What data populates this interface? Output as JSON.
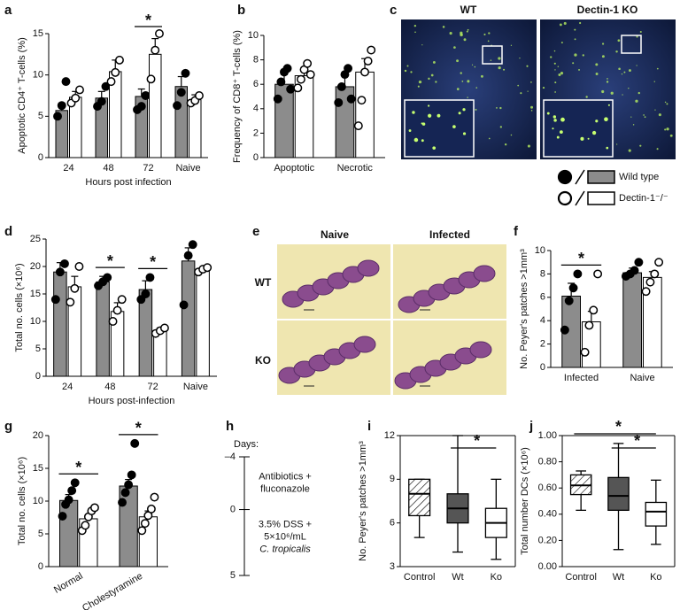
{
  "chart_data": [
    {
      "type": "bar",
      "panel": "a",
      "ylabel": "Apoptotic CD4⁺ T-cells (%)",
      "xlabel": "Hours post infection",
      "categories": [
        "24",
        "48",
        "72",
        "Naive"
      ],
      "ylim": [
        0,
        15
      ],
      "yticks": [
        0,
        5,
        10,
        15
      ],
      "series": [
        {
          "name": "Wild type",
          "color": "#8c8c8c",
          "point_fill": "#000000",
          "values": [
            5.7,
            7.2,
            7.4,
            8.6
          ],
          "errors": [
            0.9,
            0.8,
            0.9,
            1.2
          ],
          "points": [
            [
              5.0,
              6.3,
              9.2
            ],
            [
              6.2,
              6.8,
              8.6
            ],
            [
              5.8,
              6.2,
              7.5
            ],
            [
              6.3,
              7.9,
              10.2
            ]
          ]
        },
        {
          "name": "Dectin-1⁻/⁻",
          "color": "#ffffff",
          "point_fill": "#ffffff",
          "values": [
            7.3,
            10.4,
            12.5,
            7.0
          ],
          "errors": [
            0.7,
            1.4,
            1.9,
            0.6
          ],
          "points": [
            [
              6.6,
              7.2,
              8.2
            ],
            [
              9.2,
              10.3,
              11.8
            ],
            [
              9.5,
              13.0,
              15.0
            ],
            [
              6.6,
              6.9,
              7.5
            ]
          ]
        }
      ],
      "significance": [
        {
          "label": "*",
          "category": "72"
        }
      ]
    },
    {
      "type": "bar",
      "panel": "b",
      "ylabel": "Frequency of CD8⁺ T-cells (%)",
      "categories": [
        "Apoptotic",
        "Necrotic"
      ],
      "ylim": [
        0,
        10
      ],
      "yticks": [
        0,
        2,
        4,
        6,
        8,
        10
      ],
      "series": [
        {
          "color": "#8c8c8c",
          "point_fill": "#000000",
          "values": [
            6.0,
            5.8
          ],
          "errors": [
            0.8,
            0.9
          ],
          "points": [
            [
              4.8,
              6.2,
              7.0,
              7.3,
              5.6
            ],
            [
              4.5,
              5.8,
              6.8,
              7.3,
              4.8
            ]
          ]
        },
        {
          "color": "#ffffff",
          "point_fill": "#ffffff",
          "values": [
            6.7,
            7.0
          ],
          "errors": [
            0.6,
            1.1
          ],
          "points": [
            [
              5.7,
              6.4,
              7.2,
              7.7,
              6.8
            ],
            [
              2.6,
              4.7,
              7.0,
              7.9,
              8.8
            ]
          ]
        }
      ],
      "significance": []
    },
    {
      "type": "bar",
      "panel": "d",
      "ylabel": "Total no. cells (×10⁶)",
      "xlabel": "Hours post-infection",
      "categories": [
        "24",
        "48",
        "72",
        "Naive"
      ],
      "ylim": [
        0,
        25
      ],
      "yticks": [
        0,
        5,
        10,
        15,
        20,
        25
      ],
      "series": [
        {
          "color": "#8c8c8c",
          "point_fill": "#000000",
          "values": [
            19,
            17.2,
            15.8,
            21
          ],
          "errors": [
            1.7,
            1.0,
            1.6,
            2.4
          ],
          "points": [
            [
              14,
              19,
              20.5
            ],
            [
              16.5,
              17.2,
              18
            ],
            [
              14,
              15,
              18
            ],
            [
              13,
              22,
              24
            ]
          ]
        },
        {
          "color": "#ffffff",
          "point_fill": "#ffffff",
          "values": [
            16.3,
            11.8,
            8.3,
            19.2
          ],
          "errors": [
            1.9,
            1.6,
            0.5,
            0.6
          ],
          "points": [
            [
              13.5,
              16,
              20
            ],
            [
              10,
              12,
              14
            ],
            [
              7.8,
              8.3,
              8.8
            ],
            [
              19,
              19.5,
              19.8
            ]
          ]
        }
      ],
      "significance": [
        {
          "label": "*",
          "category": "48"
        },
        {
          "label": "*",
          "category": "72"
        }
      ]
    },
    {
      "type": "bar",
      "panel": "f",
      "ylabel": "No. Peyer's patches >1mm³",
      "categories": [
        "Infected",
        "Naive"
      ],
      "ylim": [
        0,
        10
      ],
      "yticks": [
        0,
        2,
        4,
        6,
        8,
        10
      ],
      "series": [
        {
          "color": "#8c8c8c",
          "point_fill": "#000000",
          "values": [
            6.1,
            8.1
          ],
          "errors": [
            1.1,
            0.4
          ],
          "points": [
            [
              3.2,
              5.7,
              6.8,
              8.0
            ],
            [
              7.8,
              8.0,
              8.3,
              9.0
            ]
          ]
        },
        {
          "color": "#ffffff",
          "point_fill": "#ffffff",
          "values": [
            3.9,
            7.7
          ],
          "errors": [
            0.9,
            0.5
          ],
          "points": [
            [
              1.3,
              3.6,
              4.9,
              8.0
            ],
            [
              6.5,
              7.3,
              8.0,
              9.0
            ]
          ]
        }
      ],
      "significance": [
        {
          "label": "*",
          "category": "Infected"
        }
      ]
    },
    {
      "type": "bar",
      "panel": "g",
      "ylabel": "Total no. cells (×10⁶)",
      "categories": [
        "Normal",
        "Cholestyramine"
      ],
      "ylim": [
        0,
        20
      ],
      "yticks": [
        0,
        5,
        10,
        15,
        20
      ],
      "series": [
        {
          "color": "#8c8c8c",
          "point_fill": "#000000",
          "values": [
            10.1,
            12.3
          ],
          "errors": [
            0.9,
            1.0
          ],
          "points": [
            [
              7.7,
              9.5,
              10.2,
              11.6,
              12.8
            ],
            [
              9.8,
              11.3,
              12.5,
              14.0,
              18.8
            ]
          ]
        },
        {
          "color": "#ffffff",
          "point_fill": "#ffffff",
          "values": [
            7.3,
            7.6
          ],
          "errors": [
            0.6,
            0.9
          ],
          "points": [
            [
              5.5,
              6.3,
              7.6,
              8.5,
              9.0
            ],
            [
              5.5,
              6.6,
              7.8,
              8.8,
              10.6
            ]
          ]
        }
      ],
      "significance": [
        {
          "label": "*",
          "category": "Normal"
        },
        {
          "label": "*",
          "category": "Cholestyramine"
        }
      ]
    },
    {
      "type": "box",
      "panel": "i",
      "ylabel": "No. Peyer's patches >1mm³",
      "categories": [
        "Control",
        "Wt",
        "Ko"
      ],
      "ylim": [
        3,
        12
      ],
      "yticks": [
        3,
        6,
        9,
        12
      ],
      "boxes": [
        {
          "whisker_low": 5,
          "q1": 6.5,
          "median": 8,
          "q3": 9,
          "whisker_high": 9,
          "color": "#ffffff",
          "hatch": true
        },
        {
          "whisker_low": 4,
          "q1": 6,
          "median": 7,
          "q3": 8,
          "whisker_high": 12,
          "color": "#555555",
          "hatch": false
        },
        {
          "whisker_low": 3.5,
          "q1": 5,
          "median": 6,
          "q3": 7,
          "whisker_high": 9,
          "color": "#ffffff",
          "hatch": false
        }
      ],
      "significance": [
        {
          "label": "*",
          "between": [
            "Wt",
            "Ko"
          ]
        }
      ]
    },
    {
      "type": "box",
      "panel": "j",
      "ylabel": "Total number DCs (×10⁶)",
      "categories": [
        "Control",
        "Wt",
        "Ko"
      ],
      "ylim": [
        0,
        1
      ],
      "yticks": [
        {
          "value": 0,
          "label": "0.00"
        },
        {
          "value": 0.2,
          "label": "0.20"
        },
        {
          "value": 0.4,
          "label": "0.40"
        },
        {
          "value": 0.6,
          "label": "0.60"
        },
        {
          "value": 0.8,
          "label": "0.80"
        },
        {
          "value": 1,
          "label": "1.00"
        }
      ],
      "boxes": [
        {
          "whisker_low": 0.43,
          "q1": 0.55,
          "median": 0.62,
          "q3": 0.7,
          "whisker_high": 0.73,
          "color": "#ffffff",
          "hatch": true
        },
        {
          "whisker_low": 0.13,
          "q1": 0.43,
          "median": 0.54,
          "q3": 0.68,
          "whisker_high": 0.94,
          "color": "#555555",
          "hatch": false
        },
        {
          "whisker_low": 0.17,
          "q1": 0.31,
          "median": 0.42,
          "q3": 0.49,
          "whisker_high": 0.66,
          "color": "#ffffff",
          "hatch": false
        }
      ],
      "significance": [
        {
          "label": "*",
          "between": [
            "Wt",
            "Ko"
          ]
        },
        {
          "label": "*",
          "between": [
            "Control",
            "Ko"
          ]
        }
      ]
    }
  ],
  "micrographs": {
    "panel": "c",
    "labels": [
      "WT",
      "Dectin-1 KO"
    ]
  },
  "histology": {
    "panel": "e",
    "columns": [
      "Naive",
      "Infected"
    ],
    "rows": [
      "WT",
      "KO"
    ]
  },
  "timeline": {
    "panel": "h",
    "title": "Days:",
    "ticks": [
      {
        "value": -4,
        "label": "–4"
      },
      0,
      5
    ],
    "events": [
      {
        "lines": [
          "Antibiotics +",
          "fluconazole"
        ]
      },
      {
        "lines": [
          "3.5% DSS +",
          "5×10⁶/mL",
          "C. tropicalis"
        ]
      }
    ]
  }
}
